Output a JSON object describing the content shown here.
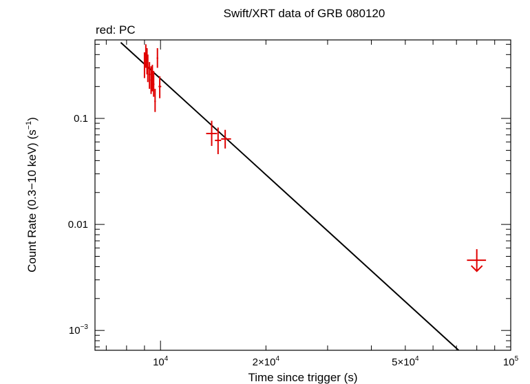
{
  "title": "Swift/XRT data of GRB 080120",
  "legend_note": "red: PC",
  "colors": {
    "data": "#e00000",
    "fit": "#000000",
    "axes": "#000000"
  },
  "chart_data": {
    "type": "scatter",
    "title": "Swift/XRT data of GRB 080120",
    "xlabel": "Time since trigger (s)",
    "ylabel_main": "Count Rate (0.3−10 keV) (s",
    "ylabel_sup": "−1",
    "ylabel_close": ")",
    "xscale": "log",
    "yscale": "log",
    "xlim": [
      6500,
      100000
    ],
    "ylim": [
      0.00065,
      0.55
    ],
    "x_ticks": [
      {
        "value": 10000,
        "base": "10",
        "exp": "4"
      },
      {
        "value": 20000,
        "base": "2×10",
        "exp": "4"
      },
      {
        "value": 50000,
        "base": "5×10",
        "exp": "4"
      },
      {
        "value": 100000,
        "base": "10",
        "exp": "5"
      }
    ],
    "y_ticks": [
      {
        "value": 0.1,
        "base": "0.1",
        "exp": ""
      },
      {
        "value": 0.01,
        "base": "0.01",
        "exp": ""
      },
      {
        "value": 0.001,
        "base": "10",
        "exp": "−3"
      }
    ],
    "series": [
      {
        "name": "PC",
        "color": "#e00000",
        "points": [
          {
            "x": 9000,
            "y": 0.33,
            "xlo": 8950,
            "xhi": 9050,
            "ylo": 0.24,
            "yhi": 0.42
          },
          {
            "x": 9080,
            "y": 0.4,
            "xlo": 9030,
            "xhi": 9130,
            "ylo": 0.3,
            "yhi": 0.5
          },
          {
            "x": 9150,
            "y": 0.35,
            "xlo": 9100,
            "xhi": 9200,
            "ylo": 0.26,
            "yhi": 0.46
          },
          {
            "x": 9200,
            "y": 0.3,
            "xlo": 9150,
            "xhi": 9250,
            "ylo": 0.22,
            "yhi": 0.4
          },
          {
            "x": 9300,
            "y": 0.26,
            "xlo": 9250,
            "xhi": 9350,
            "ylo": 0.19,
            "yhi": 0.34
          },
          {
            "x": 9400,
            "y": 0.23,
            "xlo": 9350,
            "xhi": 9450,
            "ylo": 0.17,
            "yhi": 0.31
          },
          {
            "x": 9480,
            "y": 0.25,
            "xlo": 9430,
            "xhi": 9530,
            "ylo": 0.18,
            "yhi": 0.32
          },
          {
            "x": 9560,
            "y": 0.21,
            "xlo": 9510,
            "xhi": 9610,
            "ylo": 0.16,
            "yhi": 0.28
          },
          {
            "x": 9650,
            "y": 0.145,
            "xlo": 9600,
            "xhi": 9700,
            "ylo": 0.115,
            "yhi": 0.19
          },
          {
            "x": 9800,
            "y": 0.37,
            "xlo": 9750,
            "xhi": 9850,
            "ylo": 0.3,
            "yhi": 0.46
          },
          {
            "x": 9950,
            "y": 0.2,
            "xlo": 9870,
            "xhi": 10050,
            "ylo": 0.155,
            "yhi": 0.25
          },
          {
            "x": 14000,
            "y": 0.072,
            "xlo": 13500,
            "xhi": 14500,
            "ylo": 0.055,
            "yhi": 0.095
          },
          {
            "x": 14600,
            "y": 0.062,
            "xlo": 14300,
            "xhi": 14900,
            "ylo": 0.046,
            "yhi": 0.082
          },
          {
            "x": 15300,
            "y": 0.064,
            "xlo": 14900,
            "xhi": 15900,
            "ylo": 0.052,
            "yhi": 0.078
          }
        ],
        "upper_limits": [
          {
            "x": 80000,
            "y": 0.0046,
            "xlo": 75000,
            "xhi": 85000
          }
        ]
      }
    ],
    "fit_line": {
      "x": [
        7700,
        71000
      ],
      "y": [
        0.52,
        0.00065
      ]
    }
  }
}
